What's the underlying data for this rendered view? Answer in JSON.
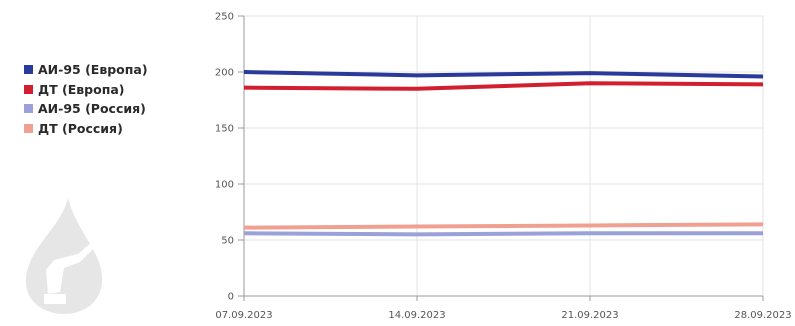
{
  "icons": {
    "watermark": "oil-drop-fuel-nozzle-icon"
  },
  "chart_data": {
    "type": "line",
    "x": [
      "07.09.2023",
      "14.09.2023",
      "21.09.2023",
      "28.09.2023"
    ],
    "ylim": [
      0,
      250
    ],
    "yticks": [
      0,
      50,
      100,
      150,
      200,
      250
    ],
    "grid": true,
    "legend_position": "left",
    "title": "",
    "xlabel": "",
    "ylabel": "",
    "series": [
      {
        "name": "АИ-95 (Европа)",
        "color": "#2a3a9a",
        "values": [
          200,
          197,
          199,
          196
        ]
      },
      {
        "name": "ДТ (Европа)",
        "color": "#d21f2f",
        "values": [
          186,
          185,
          190,
          189
        ]
      },
      {
        "name": "АИ-95 (Россия)",
        "color": "#9aa0d8",
        "values": [
          56,
          55,
          56,
          56
        ]
      },
      {
        "name": "ДТ (Россия)",
        "color": "#f0a090",
        "values": [
          61,
          62,
          63,
          64
        ]
      }
    ]
  }
}
